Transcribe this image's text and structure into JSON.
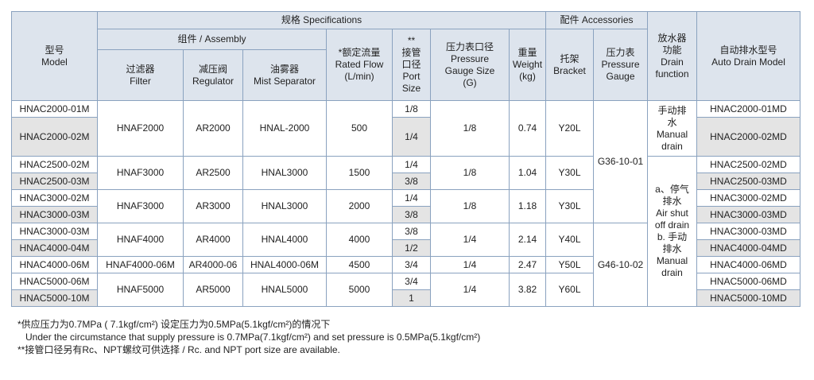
{
  "header": {
    "spec": "规格 Specifications",
    "accessories": "配件 Accessories",
    "assembly": "组件 / Assembly",
    "model": [
      "型号",
      "Model"
    ],
    "filter": [
      "过滤器",
      "Filter"
    ],
    "regulator": [
      "减压阀",
      "Regulator"
    ],
    "mist": [
      "油雾器",
      "Mist Separator"
    ],
    "flow": [
      "*额定流量",
      "Rated Flow",
      "(L/min)"
    ],
    "port": [
      "**",
      "接管",
      "口径",
      "Port",
      "Size"
    ],
    "gauge_size": [
      "压力表口径",
      "Pressure",
      "Gauge Size",
      "(G)"
    ],
    "weight": [
      "重量",
      "Weight",
      "(kg)"
    ],
    "bracket": [
      "托架",
      "Bracket"
    ],
    "gauge": [
      "压力表",
      "Pressure",
      "Gauge"
    ],
    "drain": [
      "放水器",
      "功能",
      "Drain",
      "function"
    ],
    "auto": [
      "自动排水型号",
      "Auto Drain Model"
    ]
  },
  "table": {
    "models": [
      "HNAC2000-01M",
      "HNAC2000-02M",
      "HNAC2500-02M",
      "HNAC2500-03M",
      "HNAC3000-02M",
      "HNAC3000-03M",
      "HNAC3000-03M",
      "HNAC4000-04M",
      "HNAC4000-06M",
      "HNAC5000-06M",
      "HNAC5000-10M"
    ],
    "auto_drain": [
      "HNAC2000-01MD",
      "HNAC2000-02MD",
      "HNAC2500-02MD",
      "HNAC2500-03MD",
      "HNAC3000-02MD",
      "HNAC3000-03MD",
      "HNAC3000-03MD",
      "HNAC4000-04MD",
      "HNAC4000-06MD",
      "HNAC5000-06MD",
      "HNAC5000-10MD"
    ],
    "groups": [
      {
        "filter": "HNAF2000",
        "regulator": "AR2000",
        "mist_separator": "HNAL-2000",
        "rated_flow": 500,
        "ports": [
          "1/8",
          "1/4"
        ],
        "gauge_size": "1/8",
        "weight": 0.74,
        "bracket": "Y20L"
      },
      {
        "filter": "HNAF3000",
        "regulator": "AR2500",
        "mist_separator": "HNAL3000",
        "rated_flow": 1500,
        "ports": [
          "1/4",
          "3/8"
        ],
        "gauge_size": "1/8",
        "weight": 1.04,
        "bracket": "Y30L"
      },
      {
        "filter": "HNAF3000",
        "regulator": "AR3000",
        "mist_separator": "HNAL3000",
        "rated_flow": 2000,
        "ports": [
          "1/4",
          "3/8"
        ],
        "gauge_size": "1/8",
        "weight": 1.18,
        "bracket": "Y30L"
      },
      {
        "filter": "HNAF4000",
        "regulator": "AR4000",
        "mist_separator": "HNAL4000",
        "rated_flow": 4000,
        "ports": [
          "3/8",
          "1/2"
        ],
        "gauge_size": "1/4",
        "weight": 2.14,
        "bracket": "Y40L"
      },
      {
        "filter": "HNAF4000-06M",
        "regulator": "AR4000-06",
        "mist_separator": "HNAL4000-06M",
        "rated_flow": 4500,
        "ports": [
          "3/4"
        ],
        "gauge_size": "1/4",
        "weight": 2.47,
        "bracket": "Y50L"
      },
      {
        "filter": "HNAF5000",
        "regulator": "AR5000",
        "mist_separator": "HNAL5000",
        "rated_flow": 5000,
        "ports": [
          "3/4",
          "1"
        ],
        "gauge_size": "1/4",
        "weight": 3.82,
        "bracket": "Y60L"
      }
    ],
    "pressure_gauges": [
      "G36-10-01",
      "G46-10-02"
    ],
    "drain_functions": [
      [
        "手动排",
        "水",
        "Manual",
        "drain"
      ],
      [
        "a、停气",
        "排水",
        "Air shut",
        "off drain",
        "b. 手动",
        "排水",
        "Manual",
        "drain"
      ]
    ]
  },
  "footnotes": [
    "*供应压力为0.7MPa ( 7.1kgf/cm²) 设定压力为0.5MPa(5.1kgf/cm²)的情况下",
    "Under the circumstance that supply pressure is 0.7MPa(7.1kgf/cm²)    and set pressure is 0.5MPa(5.1kgf/cm²)",
    "**接管口径另有Rc、NPT螺纹可供选择  / Rc. and NPT port size are available."
  ]
}
